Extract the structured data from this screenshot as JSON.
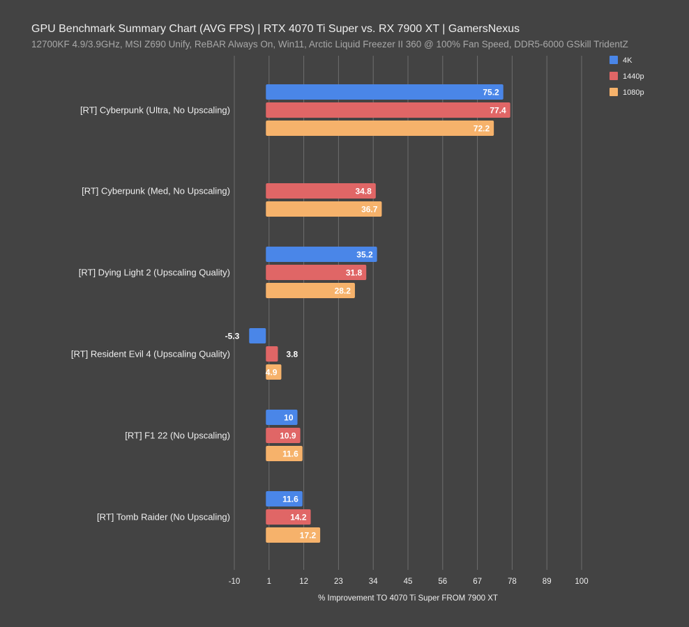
{
  "chart_data": {
    "type": "bar",
    "orientation": "horizontal",
    "title": "GPU Benchmark Summary Chart (AVG FPS) | RTX 4070 Ti Super vs. RX 7900 XT | GamersNexus",
    "subtitle": "12700KF 4.9/3.9GHz, MSI Z690 Unify, ReBAR Always On, Win11, Arctic Liquid Freezer II 360 @ 100% Fan Speed, DDR5-6000 GSkill TridentZ",
    "xlabel": "% Improvement TO 4070 Ti Super FROM 7900 XT",
    "xlim": [
      -10,
      100
    ],
    "xticks": [
      -10,
      1,
      12,
      23,
      34,
      45,
      56,
      67,
      78,
      89,
      100
    ],
    "grid": true,
    "legend_position": "top-right",
    "categories": [
      "[RT] Cyberpunk (Ultra, No Upscaling)",
      "[RT] Cyberpunk (Med, No Upscaling)",
      "[RT] Dying Light 2 (Upscaling Quality)",
      "[RT] Resident Evil 4 (Upscaling Quality)",
      "[RT] F1 22 (No Upscaling)",
      "[RT] Tomb Raider (No Upscaling)"
    ],
    "series": [
      {
        "name": "4K",
        "color": "#4a86e8",
        "values": [
          75.2,
          null,
          35.2,
          -5.3,
          10,
          11.6
        ]
      },
      {
        "name": "1440p",
        "color": "#e06666",
        "values": [
          77.4,
          34.8,
          31.8,
          3.8,
          10.9,
          14.2
        ]
      },
      {
        "name": "1080p",
        "color": "#f6b26b",
        "values": [
          72.2,
          36.7,
          28.2,
          4.9,
          11.6,
          17.2
        ]
      }
    ]
  }
}
